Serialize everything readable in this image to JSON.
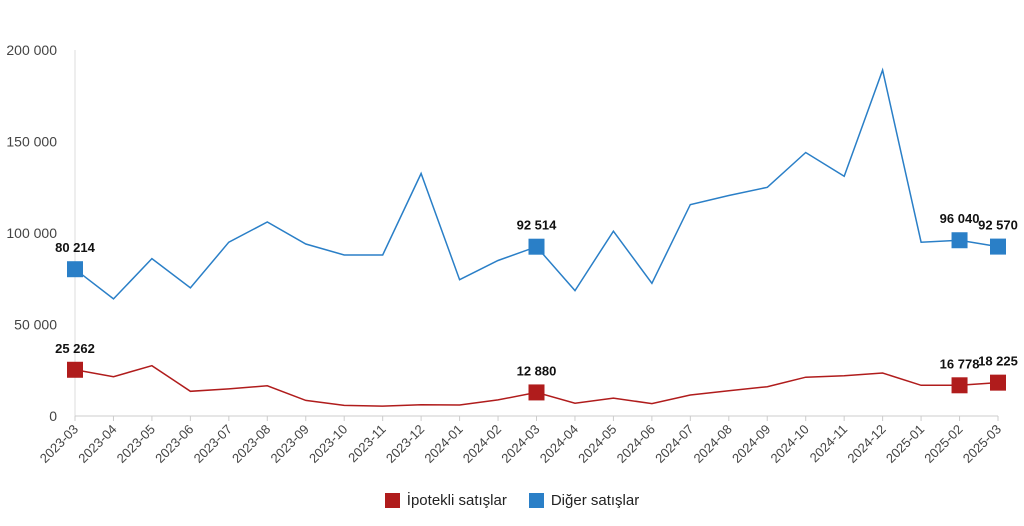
{
  "chart_data": {
    "type": "line",
    "categories": [
      "2023-03",
      "2023-04",
      "2023-05",
      "2023-06",
      "2023-07",
      "2023-08",
      "2023-09",
      "2023-10",
      "2023-11",
      "2023-12",
      "2024-01",
      "2024-02",
      "2024-03",
      "2024-04",
      "2024-05",
      "2024-06",
      "2024-07",
      "2024-08",
      "2024-09",
      "2024-10",
      "2024-11",
      "2024-12",
      "2025-01",
      "2025-02",
      "2025-03"
    ],
    "ylim": [
      0,
      200000
    ],
    "yticks": [
      0,
      50000,
      100000,
      150000,
      200000
    ],
    "ytick_labels": [
      "0",
      "50 000",
      "100 000",
      "150 000",
      "200 000"
    ],
    "grid": false,
    "legend_position": "bottom",
    "series": [
      {
        "name": "İpotekli satışlar",
        "color": "#b01c1c",
        "values": [
          25262,
          21500,
          27500,
          13500,
          14800,
          16500,
          8500,
          5800,
          5400,
          6200,
          6000,
          8800,
          12880,
          7000,
          9800,
          6800,
          11500,
          13800,
          16000,
          21200,
          22000,
          23500,
          16800,
          16778,
          18225
        ],
        "labels": [
          {
            "index": 0,
            "text": "25 262"
          },
          {
            "index": 12,
            "text": "12 880"
          },
          {
            "index": 23,
            "text": "16 778"
          },
          {
            "index": 24,
            "text": "18 225"
          }
        ]
      },
      {
        "name": "Diğer satışlar",
        "color": "#2a7fc7",
        "values": [
          80214,
          64000,
          86000,
          70000,
          95000,
          106000,
          94000,
          88000,
          88000,
          132500,
          74500,
          85000,
          92514,
          68500,
          101000,
          72500,
          115500,
          120500,
          125000,
          144000,
          131000,
          189000,
          95000,
          96040,
          92570
        ],
        "labels": [
          {
            "index": 0,
            "text": "80 214"
          },
          {
            "index": 12,
            "text": "92 514"
          },
          {
            "index": 23,
            "text": "96 040"
          },
          {
            "index": 24,
            "text": "92 570"
          }
        ]
      }
    ]
  },
  "legend": {
    "items": [
      {
        "label": "İpotekli satışlar",
        "color": "#b01c1c"
      },
      {
        "label": "Diğer satışlar",
        "color": "#2a7fc7"
      }
    ]
  }
}
